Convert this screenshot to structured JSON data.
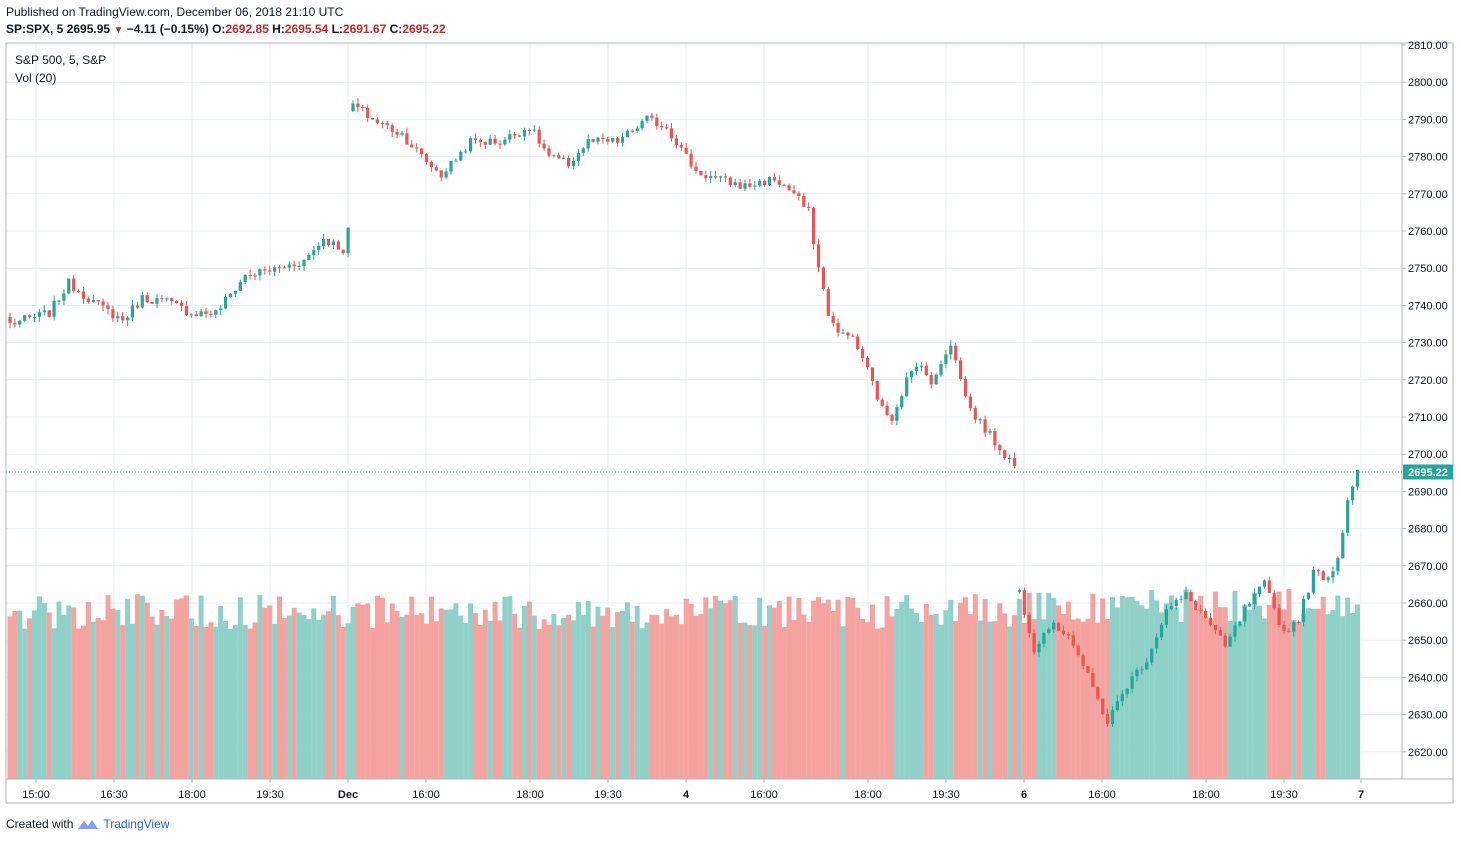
{
  "header": {
    "published": "Published on TradingView.com, December 06, 2018 21:10 UTC",
    "symbol": "SP:SPX, 5",
    "last": "2695.95",
    "change": "−4.11 (−0.15%)",
    "o_label": "O:",
    "o": "2692.85",
    "h_label": "H:",
    "h": "2695.54",
    "l_label": "L:",
    "l": "2691.67",
    "c_label": "C:",
    "c": "2695.22"
  },
  "legend": {
    "title": "S&P 500, 5, S&P",
    "vol": "Vol (20)"
  },
  "price_tag": "2695.22",
  "footer": {
    "created": "Created with",
    "brand": "TradingView"
  },
  "colors": {
    "up": "#26a69a",
    "down": "#ef5350",
    "vol_up": "#8fd1c8",
    "vol_down": "#f4a3a1",
    "grid": "#e9eef2",
    "last_line": "#26a69a"
  },
  "chart_data": {
    "type": "candlestick",
    "interval": "5m",
    "y_ticks": [
      "2810.00",
      "2800.00",
      "2790.00",
      "2780.00",
      "2770.00",
      "2760.00",
      "2750.00",
      "2740.00",
      "2730.00",
      "2720.00",
      "2710.00",
      "2700.00",
      "2690.00",
      "2680.00",
      "2670.00",
      "2660.00",
      "2650.00",
      "2640.00",
      "2630.00",
      "2620.00"
    ],
    "x_ticks": [
      "15:00",
      "16:30",
      "18:00",
      "19:30",
      "Dec",
      "16:00",
      "18:00",
      "19:30",
      "4",
      "16:00",
      "18:00",
      "19:30",
      "6",
      "16:00",
      "18:00",
      "19:30",
      "7"
    ],
    "ylim": [
      2610,
      2811
    ],
    "last_price": 2695.22,
    "close_path": [
      [
        0,
        2735
      ],
      [
        8,
        2738
      ],
      [
        12,
        2746
      ],
      [
        18,
        2740
      ],
      [
        23,
        2736
      ],
      [
        27,
        2742
      ],
      [
        32,
        2741
      ],
      [
        37,
        2738
      ],
      [
        42,
        2738
      ],
      [
        48,
        2748
      ],
      [
        55,
        2750
      ],
      [
        60,
        2752
      ],
      [
        64,
        2758
      ],
      [
        68,
        2755
      ],
      [
        69,
        2760
      ],
      [
        70,
        2794
      ],
      [
        74,
        2790
      ],
      [
        80,
        2786
      ],
      [
        84,
        2780
      ],
      [
        88,
        2775
      ],
      [
        94,
        2784
      ],
      [
        100,
        2784
      ],
      [
        106,
        2788
      ],
      [
        110,
        2780
      ],
      [
        114,
        2778
      ],
      [
        118,
        2784
      ],
      [
        124,
        2784
      ],
      [
        130,
        2790
      ],
      [
        134,
        2788
      ],
      [
        138,
        2780
      ],
      [
        140,
        2776
      ],
      [
        144,
        2774
      ],
      [
        150,
        2772
      ],
      [
        156,
        2774
      ],
      [
        160,
        2770
      ],
      [
        163,
        2765
      ],
      [
        165,
        2750
      ],
      [
        167,
        2738
      ],
      [
        169,
        2732
      ],
      [
        171,
        2733
      ],
      [
        174,
        2726
      ],
      [
        178,
        2712
      ],
      [
        180,
        2710
      ],
      [
        183,
        2720
      ],
      [
        186,
        2725
      ],
      [
        188,
        2718
      ],
      [
        190,
        2725
      ],
      [
        192,
        2730
      ],
      [
        194,
        2720
      ],
      [
        196,
        2712
      ],
      [
        200,
        2705
      ],
      [
        203,
        2700
      ],
      [
        205,
        2697
      ],
      [
        206,
        2663
      ],
      [
        209,
        2648
      ],
      [
        212,
        2654
      ],
      [
        216,
        2652
      ],
      [
        220,
        2640
      ],
      [
        224,
        2628
      ],
      [
        228,
        2638
      ],
      [
        232,
        2645
      ],
      [
        236,
        2658
      ],
      [
        240,
        2662
      ],
      [
        244,
        2656
      ],
      [
        248,
        2648
      ],
      [
        252,
        2658
      ],
      [
        256,
        2665
      ],
      [
        260,
        2652
      ],
      [
        263,
        2656
      ],
      [
        266,
        2668
      ],
      [
        269,
        2667
      ],
      [
        271,
        2672
      ],
      [
        273,
        2688
      ],
      [
        275,
        2696
      ]
    ]
  }
}
